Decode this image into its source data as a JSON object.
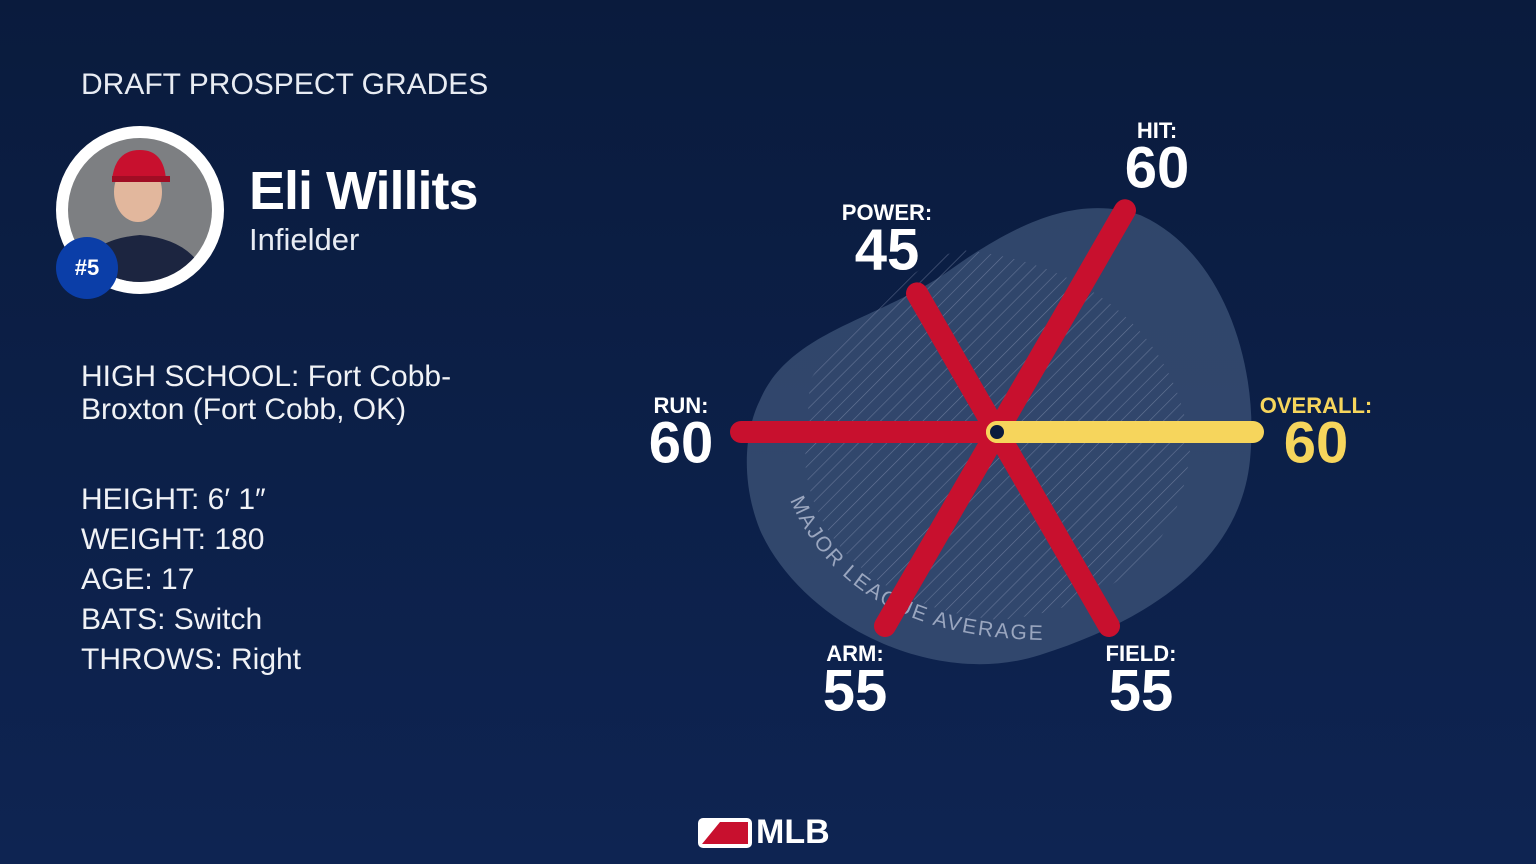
{
  "header": {
    "title": "DRAFT PROSPECT GRADES"
  },
  "player": {
    "name": "Eli Willits",
    "position": "Infielder",
    "rank": "#5",
    "school": "HIGH SCHOOL: Fort Cobb-Broxton (Fort Cobb, OK)",
    "stats": [
      "HEIGHT: 6′ 1″",
      "WEIGHT: 180",
      "AGE: 17",
      "BATS: Switch",
      "THROWS: Right"
    ]
  },
  "chart_data": {
    "type": "spokes",
    "categories": [
      "HIT:",
      "POWER:",
      "RUN:",
      "ARM:",
      "FIELD:",
      "OVERALL:"
    ],
    "values": [
      60,
      45,
      60,
      55,
      55,
      60
    ],
    "colors": [
      "#c8102e",
      "#c8102e",
      "#c8102e",
      "#c8102e",
      "#c8102e",
      "#f6d55c"
    ],
    "label_colors": [
      "#ffffff",
      "#ffffff",
      "#ffffff",
      "#ffffff",
      "#ffffff",
      "#f6d55c"
    ],
    "rlim": [
      20,
      80
    ],
    "annotation": "MAJOR LEAGUE AVERAGE"
  },
  "footer": {
    "logo": "MLB"
  }
}
